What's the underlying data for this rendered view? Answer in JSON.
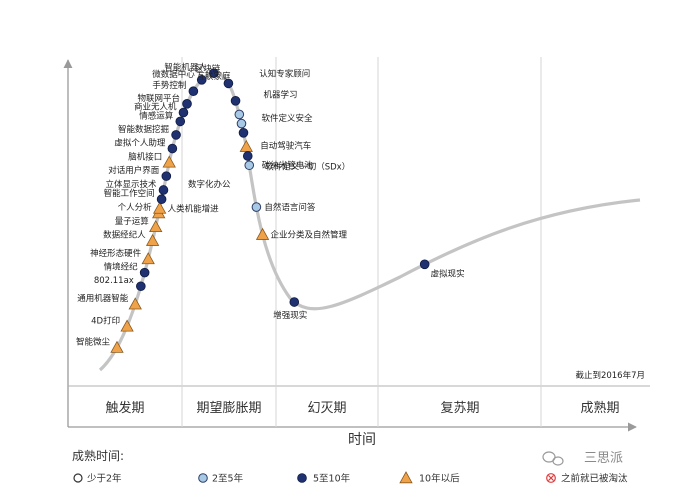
{
  "chart_data": {
    "type": "scatter",
    "xlabel": "时间",
    "note": "截止到2016年7月",
    "phases": [
      "触发期",
      "期望膨胀期",
      "幻灭期",
      "复苏期",
      "成熟期"
    ],
    "legend": {
      "title": "成熟时间:",
      "items": [
        {
          "key": "lt2",
          "label": "少于2年"
        },
        {
          "key": "2to5",
          "label": "2至5年"
        },
        {
          "key": "5to10",
          "label": "5至10年"
        },
        {
          "key": "gt10",
          "label": "10年以后"
        },
        {
          "key": "obsolete",
          "label": "之前就已被淘汰"
        }
      ]
    },
    "colors": {
      "curve": "#c4c4c4",
      "navy": "#1f3170",
      "light_blue": "#a8c9e6",
      "triangle": "#f0a24a",
      "obsolete": "#e03a3a"
    },
    "watermark": "三思派",
    "technologies": [
      {
        "name": "智能微尘",
        "t": 0.03,
        "cat": "gt10"
      },
      {
        "name": "4D打印",
        "t": 0.055,
        "cat": "gt10"
      },
      {
        "name": "通用机器智能",
        "t": 0.08,
        "cat": "gt10"
      },
      {
        "name": "802.11ax",
        "t": 0.1,
        "cat": "5to10"
      },
      {
        "name": "情境经纪",
        "t": 0.115,
        "cat": "5to10"
      },
      {
        "name": "神经形态硬件",
        "t": 0.13,
        "cat": "gt10"
      },
      {
        "name": "数据经纪人",
        "t": 0.15,
        "cat": "gt10"
      },
      {
        "name": "量子运算",
        "t": 0.165,
        "cat": "gt10"
      },
      {
        "name": "个人分析",
        "t": 0.18,
        "cat": "gt10"
      },
      {
        "name": "人类机能增进",
        "t": 0.185,
        "cat": "gt10"
      },
      {
        "name": "智能工作空间",
        "t": 0.195,
        "cat": "5to10"
      },
      {
        "name": "立体显示技术",
        "t": 0.205,
        "cat": "5to10"
      },
      {
        "name": "对话用户界面",
        "t": 0.22,
        "cat": "5to10"
      },
      {
        "name": "脑机接口",
        "t": 0.235,
        "cat": "gt10"
      },
      {
        "name": "虚拟个人助理",
        "t": 0.25,
        "cat": "5to10"
      },
      {
        "name": "智能数据挖掘",
        "t": 0.265,
        "cat": "5to10"
      },
      {
        "name": "情感运算",
        "t": 0.28,
        "cat": "5to10"
      },
      {
        "name": "商业无人机",
        "t": 0.29,
        "cat": "5to10"
      },
      {
        "name": "物联网平台",
        "t": 0.3,
        "cat": "5to10"
      },
      {
        "name": "手势控制",
        "t": 0.315,
        "cat": "5to10"
      },
      {
        "name": "微数据中心",
        "t": 0.33,
        "cat": "5to10"
      },
      {
        "name": "智能机器人",
        "t": 0.345,
        "cat": "5to10"
      },
      {
        "name": "区块链",
        "t": 0.365,
        "cat": "5to10"
      },
      {
        "name": "互联家庭",
        "t": 0.385,
        "cat": "5to10"
      },
      {
        "name": "认知专家顾问",
        "t": 0.4,
        "cat": "2to5"
      },
      {
        "name": "机器学习",
        "t": 0.41,
        "cat": "2to5"
      },
      {
        "name": "软件定义安全",
        "t": 0.42,
        "cat": "5to10"
      },
      {
        "name": "自动驾驶汽车",
        "t": 0.435,
        "cat": "gt10"
      },
      {
        "name": "碳纳米管电池",
        "t": 0.445,
        "cat": "5to10"
      },
      {
        "name": "软件定义一切（SDx）",
        "t": 0.455,
        "cat": "2to5"
      },
      {
        "name": "自然语言问答",
        "t": 0.5,
        "cat": "2to5"
      },
      {
        "name": "企业分类及自然管理",
        "t": 0.53,
        "cat": "gt10"
      },
      {
        "name": "增强现实",
        "t": 0.61,
        "cat": "5to10"
      },
      {
        "name": "虚拟现实",
        "t": 0.76,
        "cat": "5to10"
      }
    ],
    "floating_labels": [
      "数字化办公"
    ]
  }
}
